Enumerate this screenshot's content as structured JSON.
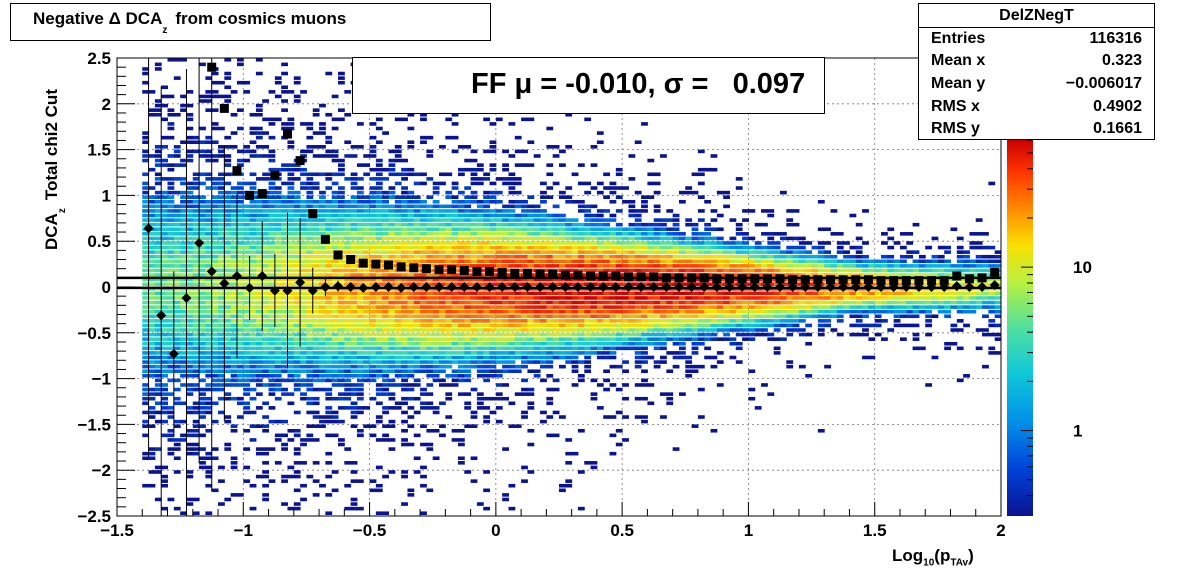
{
  "title": {
    "prefix": "Negative Δ DCA",
    "sub": "z",
    "suffix": "from cosmics muons"
  },
  "legend": {
    "label": "FF μ = -0.010, σ =   0.097",
    "series": "FF"
  },
  "stats": {
    "name": "DelZNegT",
    "rows": [
      {
        "key": "Entries",
        "value": "116316"
      },
      {
        "key": "Mean x",
        "value": "0.323"
      },
      {
        "key": "Mean y",
        "value": "−0.006017"
      },
      {
        "key": "RMS x",
        "value": "0.4902"
      },
      {
        "key": "RMS y",
        "value": "0.1661"
      }
    ]
  },
  "axes": {
    "xlabel_main": "Log",
    "xlabel_sub1": "10",
    "xlabel_mid": "(p",
    "xlabel_sub2": "TAv",
    "xlabel_end": ")",
    "ylabel_main": "DCA",
    "ylabel_sub": "z",
    "ylabel_suffix": "Total chi2 Cut"
  },
  "chart_data": {
    "type": "heatmap",
    "xlim": [
      -1.5,
      2.0
    ],
    "ylim": [
      -2.5,
      2.5
    ],
    "x_ticks": [
      "−1.5",
      "−1",
      "−0.5",
      "0",
      "0.5",
      "1",
      "1.5",
      "2"
    ],
    "x_tick_values": [
      -1.5,
      -1,
      -0.5,
      0,
      0.5,
      1,
      1.5,
      2
    ],
    "y_ticks": [
      "2.5",
      "2",
      "1.5",
      "1",
      "0.5",
      "0",
      "−0.5",
      "−1",
      "−1.5",
      "−2",
      "−2.5"
    ],
    "y_tick_values": [
      2.5,
      2,
      1.5,
      1,
      0.5,
      0,
      -0.5,
      -1,
      -1.5,
      -2,
      -2.5
    ],
    "grid": true,
    "log_z": true,
    "z_ticks": [
      "10",
      "1"
    ],
    "z_tick_values": [
      10,
      1
    ],
    "zlim": [
      0.3,
      60
    ],
    "density_model": {
      "mean_y": -0.006,
      "sigma_y_at_low_x": 0.45,
      "sigma_y_at_high_x": 0.1,
      "peak_x": 0.5
    },
    "fit_lines": [
      {
        "y": 0.1
      },
      {
        "y": -0.01
      }
    ],
    "profile_rms": {
      "marker": "square",
      "x": [
        -1.125,
        -1.075,
        -1.025,
        -0.975,
        -0.925,
        -0.875,
        -0.825,
        -0.775,
        -0.725,
        -0.675,
        -0.625,
        -0.575,
        -0.525,
        -0.475,
        -0.425,
        -0.375,
        -0.325,
        -0.275,
        -0.225,
        -0.175,
        -0.125,
        -0.075,
        -0.025,
        0.025,
        0.075,
        0.125,
        0.175,
        0.225,
        0.275,
        0.325,
        0.375,
        0.425,
        0.475,
        0.525,
        0.575,
        0.625,
        0.675,
        0.725,
        0.775,
        0.825,
        0.875,
        0.925,
        0.975,
        1.025,
        1.075,
        1.125,
        1.175,
        1.225,
        1.275,
        1.325,
        1.375,
        1.425,
        1.475,
        1.525,
        1.575,
        1.625,
        1.675,
        1.725,
        1.775,
        1.825,
        1.875,
        1.925,
        1.975
      ],
      "y": [
        2.4,
        1.95,
        1.27,
        1.0,
        1.02,
        1.22,
        1.67,
        1.38,
        0.8,
        0.52,
        0.35,
        0.3,
        0.26,
        0.25,
        0.24,
        0.22,
        0.21,
        0.2,
        0.19,
        0.19,
        0.18,
        0.17,
        0.17,
        0.16,
        0.15,
        0.15,
        0.14,
        0.14,
        0.13,
        0.13,
        0.12,
        0.12,
        0.12,
        0.11,
        0.11,
        0.11,
        0.1,
        0.1,
        0.1,
        0.1,
        0.09,
        0.09,
        0.09,
        0.09,
        0.09,
        0.09,
        0.08,
        0.08,
        0.08,
        0.08,
        0.08,
        0.08,
        0.08,
        0.07,
        0.07,
        0.07,
        0.07,
        0.07,
        0.07,
        0.12,
        0.09,
        0.1,
        0.16
      ]
    },
    "profile_mean": {
      "marker": "diamond",
      "x": [
        -1.375,
        -1.325,
        -1.275,
        -1.225,
        -1.175,
        -1.125,
        -1.075,
        -1.025,
        -0.975,
        -0.925,
        -0.875,
        -0.825,
        -0.775,
        -0.725,
        -0.675,
        -0.625,
        -0.575,
        -0.525,
        -0.475,
        -0.425,
        -0.375,
        -0.325,
        -0.275,
        -0.225,
        -0.175,
        -0.125,
        -0.075,
        -0.025,
        0.025,
        0.075,
        0.125,
        0.175,
        0.225,
        0.275,
        0.325,
        0.375,
        0.425,
        0.475,
        0.525,
        0.575,
        0.625,
        0.675,
        0.725,
        0.775,
        0.825,
        0.875,
        0.925,
        0.975,
        1.025,
        1.075,
        1.125,
        1.175,
        1.225,
        1.275,
        1.325,
        1.375,
        1.425,
        1.475,
        1.525,
        1.575,
        1.625,
        1.675,
        1.725,
        1.775,
        1.825,
        1.875,
        1.925,
        1.975
      ],
      "y": [
        0.64,
        -0.31,
        -0.73,
        -0.12,
        0.48,
        0.17,
        0.04,
        0.12,
        -0.01,
        0.12,
        -0.04,
        -0.04,
        0.05,
        -0.04,
        0.0,
        0.01,
        0.0,
        -0.01,
        0.0,
        0.0,
        -0.01,
        0.0,
        0.0,
        0.0,
        0.0,
        0.0,
        0.0,
        0.0,
        0.0,
        0.0,
        0.0,
        0.0,
        0.0,
        0.0,
        0.0,
        0.0,
        0.0,
        0.0,
        0.0,
        0.0,
        0.0,
        0.0,
        0.0,
        0.0,
        0.0,
        0.0,
        0.0,
        0.0,
        0.0,
        0.0,
        0.0,
        0.0,
        0.0,
        0.0,
        0.0,
        0.0,
        0.0,
        0.0,
        0.0,
        0.0,
        0.0,
        0.0,
        0.0,
        0.0,
        0.01,
        0.0,
        0.0,
        0.02
      ],
      "err": [
        2.5,
        2.5,
        0.9,
        2.5,
        2.4,
        2.4,
        1.5,
        0.9,
        0.35,
        0.6,
        0.4,
        0.85,
        0.7,
        0.25,
        0.1,
        0.06,
        0.05,
        0.04,
        0.03,
        0.03,
        0.03,
        0.02,
        0.02,
        0.02,
        0.02,
        0.02,
        0.02,
        0.02,
        0.02,
        0.02,
        0.02,
        0.02,
        0.02,
        0.02,
        0.02,
        0.02,
        0.02,
        0.02,
        0.02,
        0.02,
        0.02,
        0.02,
        0.02,
        0.02,
        0.02,
        0.02,
        0.02,
        0.02,
        0.02,
        0.02,
        0.02,
        0.02,
        0.02,
        0.02,
        0.02,
        0.02,
        0.02,
        0.02,
        0.02,
        0.02,
        0.02,
        0.02,
        0.02,
        0.02,
        0.02,
        0.02,
        0.02,
        0.03
      ]
    }
  }
}
